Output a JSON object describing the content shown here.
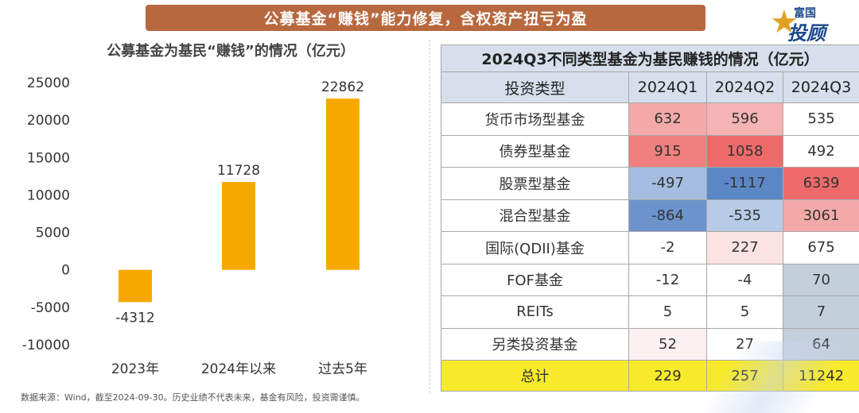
{
  "banner": {
    "text": "公募基金“赚钱”能力修复，含权资产扭亏为盈"
  },
  "logo": {
    "small": "富国",
    "big": "投顾",
    "icon": "star-icon"
  },
  "footnote": "数据来源：Wind，截至2024-09-30。历史业绩不代表未来，基金有风险，投资需谨慎。",
  "chart_data": {
    "type": "bar",
    "title": "公募基金为基民“赚钱”的情况（亿元）",
    "categories": [
      "2023年",
      "2024年以来",
      "过去5年"
    ],
    "values": [
      -4312,
      11728,
      22862
    ],
    "value_labels": [
      "-4312",
      "11728",
      "22862"
    ],
    "ylim": [
      -10000,
      25000
    ],
    "yticks": [
      25000,
      20000,
      15000,
      10000,
      5000,
      0,
      -5000,
      -10000
    ],
    "ytick_labels": [
      "25000",
      "20000",
      "15000",
      "10000",
      "5000",
      "0",
      "-5000",
      "-10000"
    ],
    "bar_color": "#f7a800",
    "grid": false,
    "xlabel": "",
    "ylabel": ""
  },
  "table": {
    "title": "2024Q3不同类型基金为基民赚钱的情况（亿元）",
    "columns": [
      "投资类型",
      "2024Q1",
      "2024Q2",
      "2024Q3"
    ],
    "rows": [
      {
        "label": "货币市场型基金",
        "cells": [
          {
            "v": "632",
            "bg": "#f4a9a9"
          },
          {
            "v": "596",
            "bg": "#f5b3b3"
          },
          {
            "v": "535",
            "bg": "#ffffff"
          }
        ]
      },
      {
        "label": "债券型基金",
        "cells": [
          {
            "v": "915",
            "bg": "#f07f7f"
          },
          {
            "v": "1058",
            "bg": "#ee6a6a"
          },
          {
            "v": "492",
            "bg": "#ffffff"
          }
        ]
      },
      {
        "label": "股票型基金",
        "cells": [
          {
            "v": "-497",
            "bg": "#a4bde0"
          },
          {
            "v": "-1117",
            "bg": "#5c87c7"
          },
          {
            "v": "6339",
            "bg": "#ee6a6a"
          }
        ]
      },
      {
        "label": "混合型基金",
        "cells": [
          {
            "v": "-864",
            "bg": "#6d93cc"
          },
          {
            "v": "-535",
            "bg": "#b8cbe6"
          },
          {
            "v": "3061",
            "bg": "#f4a9a9"
          }
        ]
      },
      {
        "label": "国际(QDII)基金",
        "cells": [
          {
            "v": "-2",
            "bg": "#ffffff"
          },
          {
            "v": "227",
            "bg": "#fbe3e3"
          },
          {
            "v": "675",
            "bg": "#ffffff"
          }
        ]
      },
      {
        "label": "FOF基金",
        "cells": [
          {
            "v": "-12",
            "bg": "#ffffff"
          },
          {
            "v": "-4",
            "bg": "#ffffff"
          },
          {
            "v": "70",
            "bg": "#c4cfdc"
          }
        ]
      },
      {
        "label": "REITs",
        "cells": [
          {
            "v": "5",
            "bg": "#ffffff"
          },
          {
            "v": "5",
            "bg": "#ffffff"
          },
          {
            "v": "7",
            "bg": "#c4cfdc"
          }
        ]
      },
      {
        "label": "另类投资基金",
        "cells": [
          {
            "v": "52",
            "bg": "#fdf0f0"
          },
          {
            "v": "27",
            "bg": "#ffffff"
          },
          {
            "v": "64",
            "bg": "#c4cfdc"
          }
        ]
      }
    ],
    "total": {
      "label": "总计",
      "cells": [
        {
          "v": "229"
        },
        {
          "v": "257"
        },
        {
          "v": "11242"
        }
      ]
    },
    "total_color": "#f7ea2a"
  }
}
